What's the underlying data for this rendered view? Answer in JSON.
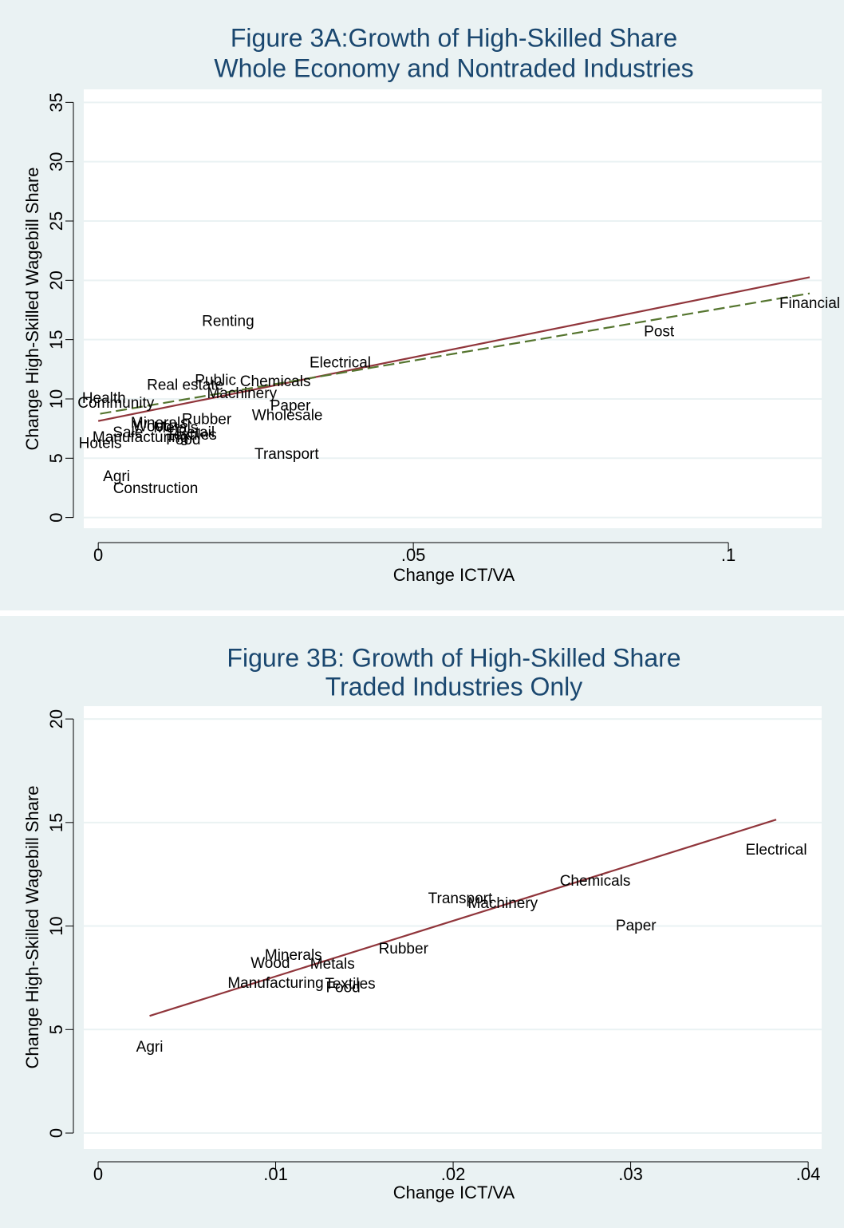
{
  "chart_data": [
    {
      "type": "scatter",
      "title": [
        "Figure 3A:Growth of High-Skilled Share",
        "Whole Economy and Nontraded Industries"
      ],
      "x_label": "Change ICT/VA",
      "y_label": "Change High-Skilled Wagebill Share",
      "labels": [
        "Financial",
        "Post",
        "Renting",
        "Electrical",
        "Chemicals",
        "Public",
        "Real estate",
        "Machinery",
        "Paper",
        "Wholesale",
        "Transport",
        "Rubber",
        "Minerals",
        "Wood",
        "Metals",
        "Retail",
        "Textiles",
        "Food",
        "Sale",
        "Manufacturing",
        "Hotels",
        "Health",
        "Community",
        "Agri",
        "Construction"
      ],
      "x": [
        0.1129,
        0.089,
        0.0206,
        0.0384,
        0.0281,
        0.0186,
        0.0138,
        0.0228,
        0.0305,
        0.03,
        0.0299,
        0.0172,
        0.0097,
        0.0086,
        0.0123,
        0.0154,
        0.0148,
        0.0135,
        0.0047,
        0.0067,
        0.0003,
        0.0009,
        0.0028,
        0.0029,
        0.0091
      ],
      "values": [
        18.0,
        15.6,
        16.5,
        13.0,
        11.4,
        11.5,
        11.1,
        10.4,
        9.35,
        8.55,
        5.3,
        8.2,
        7.9,
        7.6,
        7.5,
        7.1,
        6.9,
        6.5,
        7.1,
        6.7,
        6.2,
        10.0,
        9.6,
        3.4,
        2.4
      ],
      "fit_lines": [
        {
          "color": "#90353b",
          "dash": false,
          "x": [
            0,
            0.1129
          ],
          "values": [
            8.14,
            20.26
          ]
        },
        {
          "color": "#55752f",
          "dash": true,
          "x": [
            0.0003,
            0.1129
          ],
          "values": [
            8.75,
            18.9
          ]
        }
      ],
      "xlim": [
        -0.0023,
        0.1148
      ],
      "ylim": [
        -0.9,
        36.1
      ],
      "xticks": [
        0,
        {
          "value": 0.05,
          "label": ".05"
        },
        {
          "value": 0.1,
          "label": ".1"
        }
      ],
      "yticks": [
        0,
        5,
        10,
        15,
        20,
        25,
        30,
        35
      ],
      "grid": true
    },
    {
      "type": "scatter",
      "title": [
        "Figure 3B: Growth of High-Skilled Share",
        "Traded Industries Only"
      ],
      "x_label": "Change ICT/VA",
      "y_label": "Change High-Skilled Wagebill Share",
      "labels": [
        "Electrical",
        "Chemicals",
        "Transport",
        "Machinery",
        "Paper",
        "Rubber",
        "Minerals",
        "Wood",
        "Metals",
        "Manufacturing",
        "Textiles",
        "Food",
        "Agri"
      ],
      "x": [
        0.0382,
        0.028,
        0.0204,
        0.0228,
        0.0303,
        0.0172,
        0.011,
        0.0097,
        0.0132,
        0.01,
        0.0142,
        0.0138,
        0.0029
      ],
      "values": [
        13.64,
        12.14,
        11.29,
        11.06,
        9.98,
        8.86,
        8.55,
        8.17,
        8.13,
        7.21,
        7.17,
        7.0,
        4.12
      ],
      "fit_lines": [
        {
          "color": "#90353b",
          "dash": false,
          "x": [
            0.0029,
            0.0382
          ],
          "values": [
            5.66,
            15.14
          ]
        }
      ],
      "xlim": [
        -0.00081,
        0.04076
      ],
      "ylim": [
        -0.77,
        20.62
      ],
      "xticks": [
        0,
        {
          "value": 0.01,
          "label": ".01"
        },
        {
          "value": 0.02,
          "label": ".02"
        },
        {
          "value": 0.03,
          "label": ".03"
        },
        {
          "value": 0.04,
          "label": ".04"
        }
      ],
      "yticks": [
        0,
        5,
        10,
        15,
        20
      ],
      "grid": true
    }
  ]
}
